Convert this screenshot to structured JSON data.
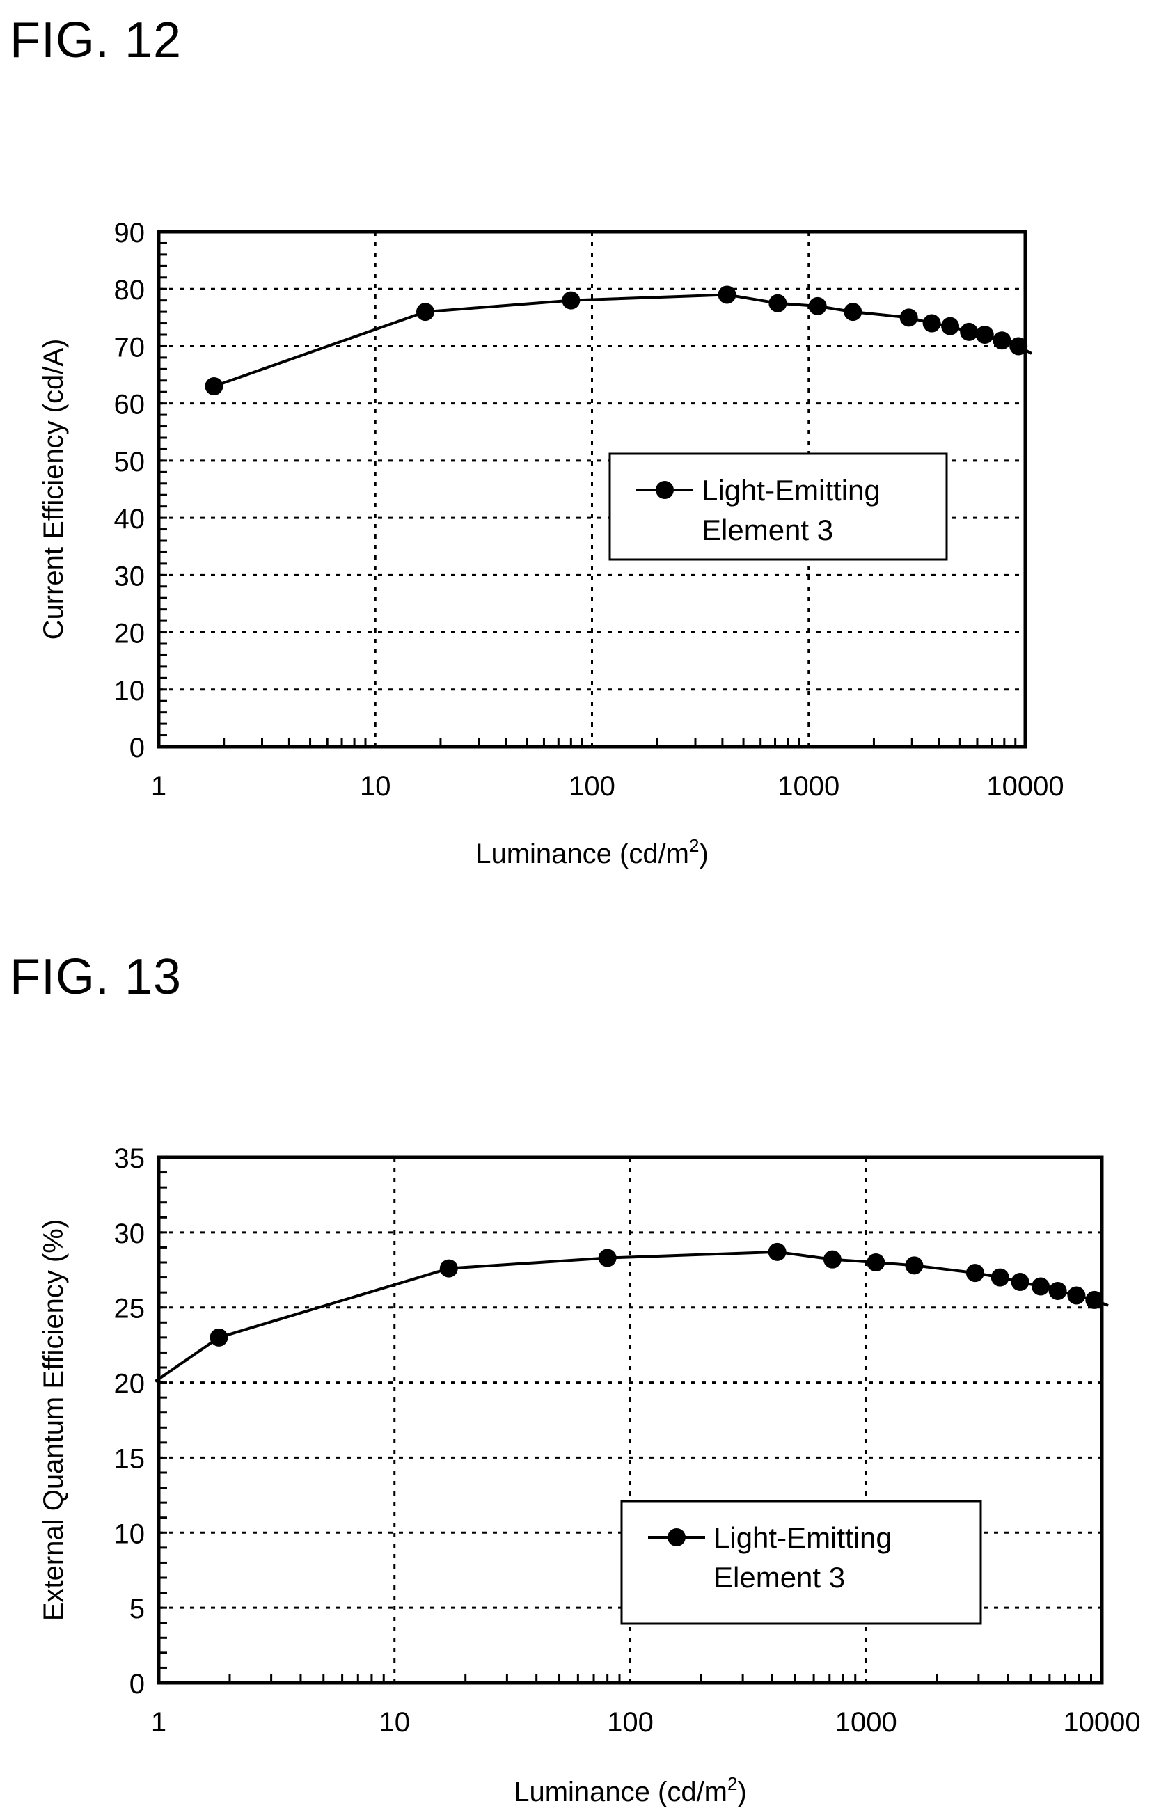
{
  "figures": [
    {
      "label": "FIG. 12",
      "chart_data": {
        "type": "line",
        "title": "",
        "xlabel": "Luminance (cd/m",
        "xlabel_sup": "2",
        "xlabel_close": ")",
        "ylabel": "Current Efficiency (cd/A)",
        "x_scale": "log",
        "xlim": [
          1,
          10000
        ],
        "ylim": [
          0,
          90
        ],
        "x_ticks": [
          "1",
          "10",
          "100",
          "1000",
          "10000"
        ],
        "y_ticks": [
          "0",
          "10",
          "20",
          "30",
          "40",
          "50",
          "60",
          "70",
          "80",
          "90"
        ],
        "grid": true,
        "legend_position": "center-right",
        "series": [
          {
            "name_line1": "Light-Emitting",
            "name_line2": "Element 3",
            "color": "#000000",
            "x": [
              1.8,
              17,
              80,
              420,
              720,
              1100,
              1600,
              2900,
              3700,
              4500,
              5500,
              6500,
              7800,
              9300
            ],
            "y": [
              63,
              76,
              78,
              79,
              77.5,
              77,
              76,
              75,
              74,
              73.5,
              72.5,
              72,
              71,
              70
            ]
          }
        ]
      }
    },
    {
      "label": "FIG. 13",
      "chart_data": {
        "type": "line",
        "title": "",
        "xlabel": "Luminance (cd/m",
        "xlabel_sup": "2",
        "xlabel_close": ")",
        "ylabel": "External Quantum Efficiency (%)",
        "x_scale": "log",
        "xlim": [
          1,
          10000
        ],
        "ylim": [
          0,
          35
        ],
        "x_ticks": [
          "1",
          "10",
          "100",
          "1000",
          "10000"
        ],
        "y_ticks": [
          "0",
          "5",
          "10",
          "15",
          "20",
          "25",
          "30",
          "35"
        ],
        "grid": true,
        "legend_position": "bottom-center-right",
        "series": [
          {
            "name_line1": "Light-Emitting",
            "name_line2": "Element 3",
            "color": "#000000",
            "x": [
              1.8,
              17,
              80,
              420,
              720,
              1100,
              1600,
              2900,
              3700,
              4500,
              5500,
              6500,
              7800,
              9300
            ],
            "y": [
              23,
              27.6,
              28.3,
              28.7,
              28.2,
              28,
              27.8,
              27.3,
              27,
              26.7,
              26.4,
              26.1,
              25.8,
              25.5
            ]
          }
        ]
      }
    }
  ]
}
